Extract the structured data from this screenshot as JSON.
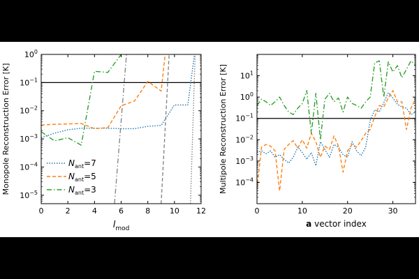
{
  "colors": {
    "letterbox": "#000000",
    "figure_bg": "#ffffff",
    "threshold": "#000000",
    "n7": "#1f77b4",
    "n5": "#ff7f0e",
    "n3": "#2ca02c",
    "gray_diag": "#7f7f7f"
  },
  "chart_data": [
    {
      "type": "line",
      "ylabel": "Monopole Reconstruction Error [K]",
      "xlabel": "l",
      "xlabel_sub": "mod",
      "xlim": [
        0,
        12
      ],
      "ylim": [
        5e-06,
        1
      ],
      "yscale": "log",
      "xticks": [
        0,
        2,
        4,
        6,
        8,
        10,
        12
      ],
      "xtick_labels": [
        "0",
        "2",
        "4",
        "6",
        "8",
        "10",
        "12"
      ],
      "yticks": [
        1e-05,
        0.0001,
        0.001,
        0.01,
        0.1,
        1
      ],
      "ytick_labels": [
        "10",
        "10",
        "10",
        "10",
        "10",
        "10"
      ],
      "ytick_exponents": [
        "−5",
        "−4",
        "−3",
        "−2",
        "−1",
        "0"
      ],
      "grid": false,
      "legend_position": "lower-left",
      "threshold": 0.1,
      "series": [
        {
          "name": "N=7",
          "name_base": "N",
          "name_sub": "ant",
          "name_tail": "=7",
          "style": "dotted",
          "color_key": "n7",
          "x": [
            0,
            1,
            2,
            3,
            4,
            5,
            6,
            7,
            8,
            9,
            10,
            11,
            11.5
          ],
          "y": [
            0.0011,
            0.0016,
            0.0021,
            0.0024,
            0.0024,
            0.0024,
            0.0023,
            0.0023,
            0.0028,
            0.003,
            0.016,
            0.016,
            1.0
          ]
        },
        {
          "name": "N=5",
          "name_base": "N",
          "name_sub": "ant",
          "name_tail": "=5",
          "style": "dashed",
          "color_key": "n5",
          "x": [
            0,
            1,
            2,
            3,
            4,
            5,
            6,
            7,
            8,
            9,
            9.3
          ],
          "y": [
            0.0031,
            0.0033,
            0.0034,
            0.0035,
            0.0023,
            0.0025,
            0.015,
            0.022,
            0.11,
            0.05,
            1.0
          ]
        },
        {
          "name": "N=3",
          "name_base": "N",
          "name_sub": "ant",
          "name_tail": "=3",
          "style": "dashdot",
          "color_key": "n3",
          "x": [
            0,
            1,
            2,
            3,
            4,
            5,
            6
          ],
          "y": [
            0.0018,
            0.00085,
            0.0011,
            0.0006,
            0.25,
            0.23,
            1.0
          ]
        }
      ],
      "diagonals": [
        {
          "style": "dashdot",
          "x": [
            5.5,
            6.4
          ],
          "y": [
            5e-06,
            1.0
          ]
        },
        {
          "style": "dashed",
          "x": [
            9.0,
            9.6
          ],
          "y": [
            5e-06,
            1.0
          ]
        },
        {
          "style": "dotted",
          "x": [
            11.2,
            11.55
          ],
          "y": [
            5e-06,
            1.0
          ]
        }
      ]
    },
    {
      "type": "line",
      "ylabel": "Multipole Reconstruction Error [K]",
      "xlabel_bold": "a",
      "xlabel": " vector index",
      "xlim": [
        0,
        35
      ],
      "ylim": [
        1e-05,
        100
      ],
      "yscale": "log",
      "xticks": [
        0,
        10,
        20,
        30
      ],
      "xtick_labels": [
        "0",
        "10",
        "20",
        "30"
      ],
      "yticks": [
        0.0001,
        0.001,
        0.01,
        0.1,
        1,
        10
      ],
      "ytick_labels": [
        "10",
        "10",
        "10",
        "10",
        "10",
        "10"
      ],
      "ytick_exponents": [
        "−4",
        "−3",
        "−2",
        "−1",
        "0",
        "1"
      ],
      "grid": false,
      "threshold": 0.1,
      "series": [
        {
          "style": "dotted",
          "color_key": "n7",
          "x": [
            0,
            1,
            2,
            3,
            4,
            5,
            6,
            7,
            8,
            9,
            10,
            11,
            12,
            13,
            14,
            15,
            16,
            17,
            18,
            19,
            20,
            21,
            22,
            23,
            24,
            25,
            26,
            27,
            28,
            29,
            30,
            31,
            32,
            33,
            34,
            35
          ],
          "y": [
            0.0025,
            0.003,
            0.0022,
            0.003,
            0.0015,
            0.002,
            0.0012,
            0.0008,
            0.0015,
            0.0045,
            0.0025,
            0.0012,
            0.0025,
            0.0006,
            0.008,
            0.0035,
            0.0015,
            0.006,
            0.0045,
            0.002,
            0.0015,
            0.008,
            0.003,
            0.0018,
            0.0045,
            0.08,
            0.25,
            0.2,
            0.55,
            1.6,
            0.9,
            0.45,
            0.35,
            0.3,
            0.15,
            0.2
          ]
        },
        {
          "style": "dashed",
          "color_key": "n5",
          "x": [
            0,
            1,
            2,
            3,
            4,
            5,
            6,
            7,
            8,
            9,
            10,
            11,
            12,
            13,
            14,
            15,
            16,
            17,
            18,
            19,
            20,
            21,
            22,
            23,
            24,
            25,
            26,
            27,
            28,
            29,
            30,
            31,
            32,
            33,
            34,
            35
          ],
          "y": [
            5e-05,
            0.0045,
            0.006,
            0.005,
            0.003,
            4e-05,
            0.0035,
            0.006,
            0.009,
            0.004,
            0.01,
            0.004,
            0.02,
            0.008,
            0.0015,
            0.005,
            0.0035,
            0.015,
            0.005,
            0.0003,
            0.003,
            0.006,
            0.0045,
            0.009,
            0.02,
            0.03,
            0.12,
            0.4,
            0.35,
            0.9,
            2.0,
            0.6,
            0.6,
            0.03,
            0.3,
            0.8
          ]
        },
        {
          "style": "dashdot",
          "color_key": "n3",
          "x": [
            0,
            1,
            2,
            3,
            4,
            5,
            6,
            7,
            8,
            9,
            10,
            11,
            12,
            13,
            14,
            15,
            16,
            17,
            18,
            19,
            20,
            21,
            22,
            23,
            24,
            25,
            26,
            27,
            28,
            29,
            30,
            31,
            32,
            33,
            34,
            35
          ],
          "y": [
            0.4,
            0.8,
            0.6,
            0.4,
            0.6,
            1.0,
            0.4,
            0.2,
            0.15,
            0.3,
            0.5,
            2.0,
            0.02,
            1.5,
            0.01,
            0.8,
            1.5,
            0.6,
            0.9,
            0.2,
            1.0,
            0.5,
            0.4,
            0.3,
            0.6,
            1.0,
            40.0,
            50.0,
            1.0,
            45.0,
            15.0,
            30.0,
            8.0,
            20.0,
            50.0,
            30.0
          ]
        }
      ]
    }
  ]
}
